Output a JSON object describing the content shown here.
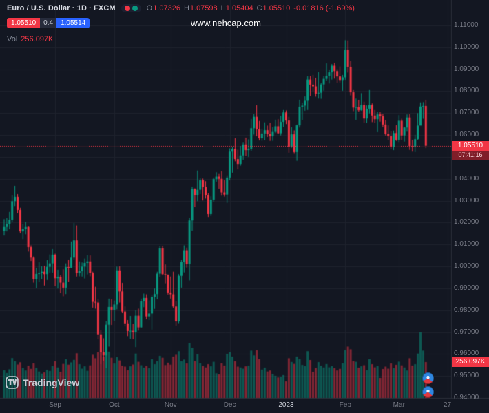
{
  "header": {
    "symbol_title": "Euro / U.S. Dollar · 1D · FXCM",
    "ohlc": [
      {
        "label": "O",
        "value": "1.07326"
      },
      {
        "label": "H",
        "value": "1.07598"
      },
      {
        "label": "L",
        "value": "1.05404"
      },
      {
        "label": "C",
        "value": "1.05510"
      }
    ],
    "change": "-0.01816 (-1.69%)",
    "sell_price": "1.05510",
    "spread": "0.4",
    "buy_price": "1.05514",
    "vol_label": "Vol",
    "vol_value": "256.097K"
  },
  "watermark": "www.nehcap.com",
  "logo": {
    "text": "TradingView"
  },
  "last_price_label": {
    "price": "1.05510",
    "countdown": "07:41:16"
  },
  "volume_label": "256.097K",
  "price_axis": {
    "ticks": [
      "1.11000",
      "1.10000",
      "1.09000",
      "1.08000",
      "1.07000",
      "1.06000",
      "1.05000",
      "1.04000",
      "1.03000",
      "1.02000",
      "1.01000",
      "1.00000",
      "0.99000",
      "0.98000",
      "0.97000",
      "0.96000",
      "0.95000",
      "0.94000"
    ]
  },
  "time_axis": {
    "labels": [
      {
        "text": "Sep",
        "i": 19
      },
      {
        "text": "Oct",
        "i": 41
      },
      {
        "text": "Nov",
        "i": 62
      },
      {
        "text": "Dec",
        "i": 84
      },
      {
        "text": "2023",
        "i": 105,
        "year": true
      },
      {
        "text": "Feb",
        "i": 127
      },
      {
        "text": "Mar",
        "i": 147
      },
      {
        "text": "27",
        "i": 165
      }
    ]
  },
  "colors": {
    "bg": "#131722",
    "grid": "#1e222d",
    "axis_line": "#2a2e39",
    "up": "#089981",
    "down": "#f23645",
    "vol_up": "rgba(8,153,129,0.5)",
    "vol_down": "rgba(242,54,69,0.5)",
    "accent_blue": "#2962ff",
    "axis_text": "#787b86"
  },
  "chart_data": {
    "type": "candlestick",
    "title": "Euro / U.S. Dollar, 1D, FXCM",
    "y_range": [
      0.94,
      1.11
    ],
    "volume_unit": "K",
    "series_format": [
      "high",
      "low",
      "close",
      "volume_K"
    ],
    "open_rule": "open equals previous candle close",
    "first_open": 1.0162,
    "last_ohlc": {
      "open": 1.07326,
      "high": 1.07598,
      "low": 1.05404,
      "close": 1.0551,
      "change": -0.01816,
      "change_pct": -1.69,
      "volume_K": 256.097
    },
    "candles": [
      [
        1.0216,
        1.0141,
        1.018,
        197
      ],
      [
        1.0221,
        1.016,
        1.0194,
        178
      ],
      [
        1.0249,
        1.017,
        1.0213,
        205
      ],
      [
        1.0325,
        1.0202,
        1.0298,
        285
      ],
      [
        1.0368,
        1.0276,
        1.0318,
        262
      ],
      [
        1.033,
        1.0243,
        1.0258,
        239
      ],
      [
        1.0268,
        1.0151,
        1.016,
        255
      ],
      [
        1.0195,
        1.0125,
        1.0171,
        214
      ],
      [
        1.0203,
        1.0147,
        1.018,
        196
      ],
      [
        1.0184,
        1.0068,
        1.0088,
        231
      ],
      [
        1.0096,
        1.0025,
        1.004,
        208
      ],
      [
        1.0046,
        0.9926,
        0.9942,
        247
      ],
      [
        0.9994,
        0.9901,
        0.9966,
        215
      ],
      [
        1.0019,
        0.9928,
        0.997,
        189
      ],
      [
        1.0,
        0.9942,
        0.9976,
        174
      ],
      [
        1.0003,
        0.9913,
        0.9965,
        182
      ],
      [
        1.0029,
        0.9938,
        0.9998,
        201
      ],
      [
        1.0055,
        0.9972,
        1.0014,
        193
      ],
      [
        1.0079,
        0.9972,
        1.0054,
        228
      ],
      [
        1.0058,
        0.991,
        0.9946,
        262
      ],
      [
        0.9985,
        0.9899,
        0.9953,
        218
      ],
      [
        0.996,
        0.9878,
        0.9926,
        187
      ],
      [
        0.9987,
        0.9864,
        0.9903,
        243
      ],
      [
        1.0014,
        0.9874,
        0.9997,
        276
      ],
      [
        1.003,
        0.993,
        0.9994,
        238
      ],
      [
        1.0114,
        0.9993,
        1.004,
        254
      ],
      [
        1.0198,
        1.003,
        1.0119,
        272
      ],
      [
        1.0187,
        0.9954,
        0.997,
        319
      ],
      [
        1.0023,
        0.9955,
        0.9979,
        241
      ],
      [
        1.0018,
        0.9954,
        0.9999,
        209
      ],
      [
        1.0036,
        0.9945,
        1.0016,
        226
      ],
      [
        1.0051,
        0.9964,
        1.0023,
        194
      ],
      [
        1.005,
        0.9955,
        0.997,
        233
      ],
      [
        0.9976,
        0.9812,
        0.9838,
        308
      ],
      [
        0.9907,
        0.9807,
        0.9835,
        284
      ],
      [
        0.9852,
        0.9667,
        0.969,
        327
      ],
      [
        0.9709,
        0.9554,
        0.9608,
        342
      ],
      [
        0.9672,
        0.957,
        0.9594,
        296
      ],
      [
        0.975,
        0.9536,
        0.9734,
        364
      ],
      [
        0.9853,
        0.9634,
        0.9815,
        331
      ],
      [
        0.985,
        0.9733,
        0.9802,
        287
      ],
      [
        0.9844,
        0.9751,
        0.9826,
        246
      ],
      [
        0.9999,
        0.9804,
        0.9982,
        292
      ],
      [
        1.0,
        0.9835,
        0.9886,
        268
      ],
      [
        0.9925,
        0.9787,
        0.9794,
        231
      ],
      [
        0.9817,
        0.9726,
        0.974,
        224
      ],
      [
        0.9755,
        0.9682,
        0.9705,
        198
      ],
      [
        0.9774,
        0.967,
        0.9706,
        226
      ],
      [
        0.9738,
        0.9668,
        0.97,
        239
      ],
      [
        0.98,
        0.9632,
        0.9775,
        317
      ],
      [
        0.9807,
        0.9707,
        0.9722,
        258
      ],
      [
        0.9853,
        0.9721,
        0.9841,
        234
      ],
      [
        0.9876,
        0.9814,
        0.9856,
        217
      ],
      [
        0.9873,
        0.9758,
        0.9772,
        229
      ],
      [
        0.9845,
        0.9755,
        0.9785,
        213
      ],
      [
        0.987,
        0.9712,
        0.9861,
        276
      ],
      [
        0.9899,
        0.9806,
        0.9874,
        241
      ],
      [
        0.9976,
        0.985,
        0.9967,
        263
      ],
      [
        1.0093,
        0.9952,
        1.0082,
        301
      ],
      [
        1.0094,
        0.9959,
        0.9965,
        287
      ],
      [
        1.0009,
        0.9923,
        0.9962,
        235
      ],
      [
        0.9964,
        0.9872,
        0.9881,
        252
      ],
      [
        0.9954,
        0.9853,
        0.9873,
        238
      ],
      [
        0.9976,
        0.981,
        0.9817,
        296
      ],
      [
        0.984,
        0.973,
        0.9749,
        308
      ],
      [
        0.9965,
        0.9741,
        0.9957,
        334
      ],
      [
        1.003,
        0.9903,
        1.002,
        262
      ],
      [
        1.0096,
        0.9973,
        1.0074,
        274
      ],
      [
        1.0086,
        0.9995,
        1.0011,
        246
      ],
      [
        1.0222,
        0.9936,
        1.021,
        392
      ],
      [
        1.0364,
        1.0163,
        1.0354,
        358
      ],
      [
        1.0357,
        1.0271,
        1.0325,
        263
      ],
      [
        1.0438,
        1.0298,
        1.035,
        312
      ],
      [
        1.0402,
        1.033,
        1.0393,
        247
      ],
      [
        1.0401,
        1.0301,
        1.0363,
        229
      ],
      [
        1.0389,
        1.031,
        1.0325,
        218
      ],
      [
        1.0334,
        1.0226,
        1.0239,
        241
      ],
      [
        1.032,
        1.023,
        1.0305,
        226
      ],
      [
        1.0406,
        1.0296,
        1.0399,
        258
      ],
      [
        1.043,
        1.0387,
        1.041,
        176
      ],
      [
        1.0422,
        1.0355,
        1.04,
        168
      ],
      [
        1.0435,
        1.0323,
        1.0338,
        247
      ],
      [
        1.0394,
        1.0319,
        1.0328,
        232
      ],
      [
        1.0416,
        1.029,
        1.0406,
        315
      ],
      [
        1.0539,
        1.0393,
        1.0524,
        327
      ],
      [
        1.0545,
        1.0428,
        1.0537,
        296
      ],
      [
        1.0585,
        1.048,
        1.049,
        262
      ],
      [
        1.0533,
        1.0443,
        1.0468,
        224
      ],
      [
        1.055,
        1.046,
        1.0507,
        218
      ],
      [
        1.0565,
        1.0487,
        1.0557,
        209
      ],
      [
        1.0588,
        1.0505,
        1.0531,
        226
      ],
      [
        1.058,
        1.05,
        1.0537,
        231
      ],
      [
        1.0673,
        1.0528,
        1.0631,
        338
      ],
      [
        1.0695,
        1.0602,
        1.0683,
        304
      ],
      [
        1.0736,
        1.0594,
        1.0626,
        341
      ],
      [
        1.0664,
        1.0575,
        1.0585,
        277
      ],
      [
        1.0629,
        1.0573,
        1.0607,
        203
      ],
      [
        1.0658,
        1.0576,
        1.0622,
        217
      ],
      [
        1.0643,
        1.0591,
        1.0604,
        189
      ],
      [
        1.0656,
        1.0573,
        1.0594,
        196
      ],
      [
        1.0636,
        1.0573,
        1.0614,
        172
      ],
      [
        1.067,
        1.0609,
        1.064,
        158
      ],
      [
        1.0672,
        1.0604,
        1.0608,
        146
      ],
      [
        1.0688,
        1.0598,
        1.066,
        151
      ],
      [
        1.0714,
        1.0637,
        1.0703,
        163
      ],
      [
        1.0712,
        1.065,
        1.0666,
        118
      ],
      [
        1.0683,
        1.0519,
        1.0547,
        284
      ],
      [
        1.0635,
        1.0541,
        1.0603,
        257
      ],
      [
        1.0621,
        1.0514,
        1.0522,
        243
      ],
      [
        1.0648,
        1.0482,
        1.0644,
        296
      ],
      [
        1.0761,
        1.0634,
        1.0729,
        278
      ],
      [
        1.0748,
        1.0669,
        1.0734,
        236
      ],
      [
        1.0776,
        1.0711,
        1.0756,
        228
      ],
      [
        1.0868,
        1.0714,
        1.0853,
        334
      ],
      [
        1.0869,
        1.0778,
        1.083,
        271
      ],
      [
        1.0874,
        1.08,
        1.0822,
        187
      ],
      [
        1.0861,
        1.0775,
        1.0789,
        214
      ],
      [
        1.0887,
        1.0766,
        1.0793,
        256
      ],
      [
        1.0838,
        1.0765,
        1.0831,
        231
      ],
      [
        1.0868,
        1.0802,
        1.0856,
        218
      ],
      [
        1.0927,
        1.0848,
        1.087,
        242
      ],
      [
        1.0898,
        1.0835,
        1.0886,
        219
      ],
      [
        1.0924,
        1.0853,
        1.0916,
        227
      ],
      [
        1.0929,
        1.0857,
        1.0892,
        213
      ],
      [
        1.0901,
        1.0838,
        1.0867,
        196
      ],
      [
        1.0913,
        1.084,
        1.0851,
        208
      ],
      [
        1.0874,
        1.0802,
        1.0863,
        247
      ],
      [
        1.1033,
        1.0852,
        1.0989,
        342
      ],
      [
        1.1032,
        1.0885,
        1.0911,
        367
      ],
      [
        1.0938,
        1.0781,
        1.0795,
        348
      ],
      [
        1.0805,
        1.0709,
        1.0725,
        263
      ],
      [
        1.0766,
        1.0669,
        1.0727,
        258
      ],
      [
        1.076,
        1.0707,
        1.0713,
        217
      ],
      [
        1.0791,
        1.0711,
        1.0737,
        226
      ],
      [
        1.0752,
        1.0656,
        1.0675,
        234
      ],
      [
        1.0735,
        1.0655,
        1.072,
        198
      ],
      [
        1.0805,
        1.0699,
        1.0737,
        276
      ],
      [
        1.0744,
        1.0659,
        1.0689,
        241
      ],
      [
        1.0714,
        1.0655,
        1.0672,
        219
      ],
      [
        1.0706,
        1.0613,
        1.0694,
        228
      ],
      [
        1.0704,
        1.0661,
        1.0686,
        143
      ],
      [
        1.0697,
        1.0636,
        1.0648,
        207
      ],
      [
        1.0668,
        1.0598,
        1.0605,
        224
      ],
      [
        1.0644,
        1.0577,
        1.0595,
        209
      ],
      [
        1.0617,
        1.0535,
        1.0546,
        246
      ],
      [
        1.062,
        1.0531,
        1.0609,
        213
      ],
      [
        1.0645,
        1.0573,
        1.0577,
        237
      ],
      [
        1.0691,
        1.0565,
        1.0665,
        259
      ],
      [
        1.0674,
        1.0578,
        1.0598,
        233
      ],
      [
        1.0638,
        1.057,
        1.0634,
        218
      ],
      [
        1.0694,
        1.0615,
        1.068,
        196
      ],
      [
        1.0695,
        1.0532,
        1.0549,
        284
      ],
      [
        1.0578,
        1.0524,
        1.0546,
        232
      ],
      [
        1.0601,
        1.0522,
        1.0581,
        241
      ],
      [
        1.07,
        1.0578,
        1.0643,
        317
      ],
      [
        1.0749,
        1.0649,
        1.073,
        468
      ],
      [
        1.075,
        1.0674,
        1.07326,
        338
      ],
      [
        1.07598,
        1.05404,
        1.0551,
        256.097
      ]
    ]
  }
}
